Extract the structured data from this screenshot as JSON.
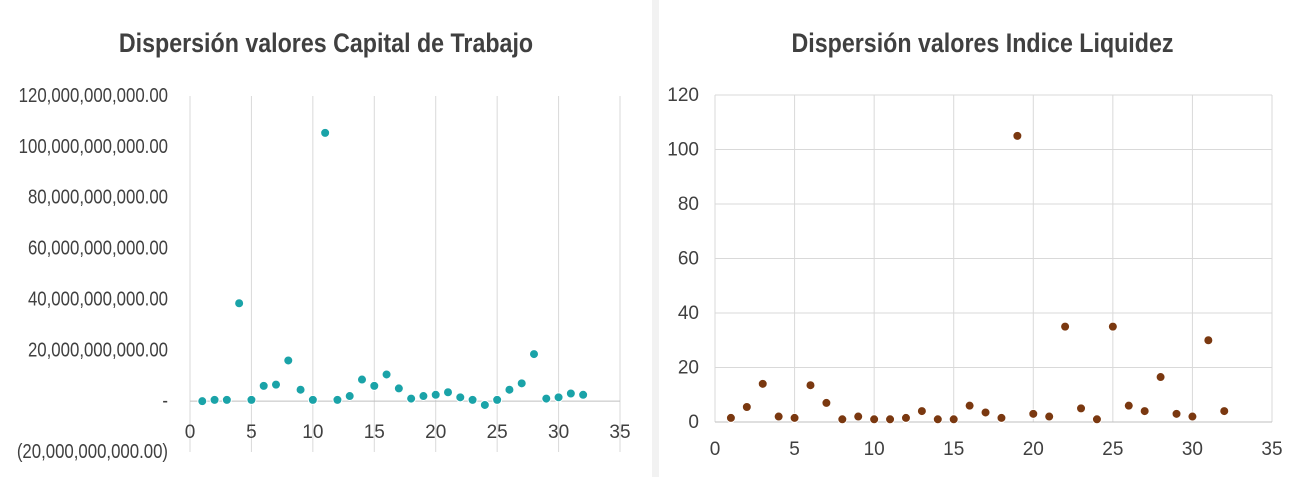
{
  "chart_data": [
    {
      "type": "scatter",
      "title": "Dispersión valores Capital de Trabajo",
      "xlabel": "",
      "ylabel": "",
      "xlim": [
        0,
        35
      ],
      "ylim": [
        -20000000000,
        120000000000
      ],
      "x_ticks": [
        "0",
        "5",
        "10",
        "15",
        "20",
        "25",
        "30",
        "35"
      ],
      "y_ticks": [
        "(20,000,000,000.00)",
        "-",
        "20,000,000,000.00",
        "40,000,000,000.00",
        "60,000,000,000.00",
        "80,000,000,000.00",
        "100,000,000,000.00",
        "120,000,000,000.00"
      ],
      "grid": "vertical",
      "marker_color": "#1aa3a8",
      "x": [
        1,
        2,
        3,
        4,
        5,
        6,
        7,
        8,
        9,
        10,
        11,
        12,
        13,
        14,
        15,
        16,
        17,
        18,
        19,
        20,
        21,
        22,
        23,
        24,
        25,
        26,
        27,
        28,
        29,
        30,
        31,
        32
      ],
      "y": [
        0,
        500000000,
        500000000,
        38500000000,
        500000000,
        6000000000,
        6500000000,
        16000000000,
        4500000000,
        500000000,
        105500000000,
        500000000,
        2000000000,
        8500000000,
        6000000000,
        10500000000,
        5000000000,
        1000000000,
        2000000000,
        2500000000,
        3500000000,
        1500000000,
        500000000,
        -1500000000,
        500000000,
        4500000000,
        7000000000,
        18500000000,
        1000000000,
        1500000000,
        3000000000,
        2500000000
      ]
    },
    {
      "type": "scatter",
      "title": "Dispersión valores Indice Liquidez",
      "xlabel": "",
      "ylabel": "",
      "xlim": [
        0,
        35
      ],
      "ylim": [
        0,
        120
      ],
      "x_ticks": [
        "0",
        "5",
        "10",
        "15",
        "20",
        "25",
        "30",
        "35"
      ],
      "y_ticks": [
        "0",
        "20",
        "40",
        "60",
        "80",
        "100",
        "120"
      ],
      "grid": "vertical and horizontal",
      "marker_color": "#7a3810",
      "x": [
        1,
        2,
        3,
        4,
        5,
        6,
        7,
        8,
        9,
        10,
        11,
        12,
        13,
        14,
        15,
        16,
        17,
        18,
        19,
        20,
        21,
        22,
        23,
        24,
        25,
        26,
        27,
        28,
        29,
        30,
        31,
        32
      ],
      "y": [
        1.5,
        5.5,
        14,
        2,
        1.5,
        13.5,
        7,
        1,
        2,
        1,
        1,
        1.5,
        4,
        1,
        1,
        6,
        3.5,
        1.5,
        105,
        3,
        2,
        35,
        5,
        1,
        35,
        6,
        4,
        16.5,
        3,
        2,
        30,
        4
      ]
    }
  ]
}
